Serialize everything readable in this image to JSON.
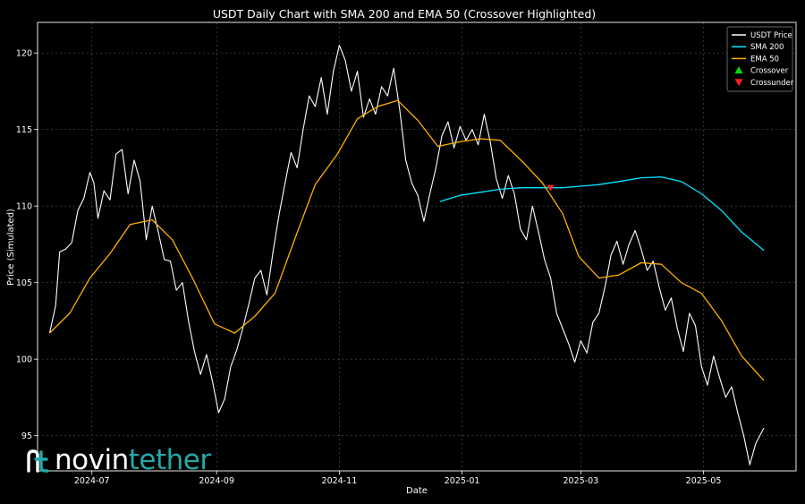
{
  "chart_data": {
    "type": "line",
    "title": "USDT Daily Chart with SMA 200 and EMA 50 (Crossover Highlighted)",
    "xlabel": "Date",
    "ylabel": "Price (Simulated)",
    "x_range": [
      "2024-06-04",
      "2025-06-16"
    ],
    "ylim": [
      92.7,
      122.0
    ],
    "x_ticks": [
      {
        "date": "2024-07-01",
        "label": "2024-07"
      },
      {
        "date": "2024-09-01",
        "label": "2024-09"
      },
      {
        "date": "2024-11-01",
        "label": "2024-11"
      },
      {
        "date": "2025-01-01",
        "label": "2025-01"
      },
      {
        "date": "2025-03-01",
        "label": "2025-03"
      },
      {
        "date": "2025-05-01",
        "label": "2025-05"
      }
    ],
    "y_ticks": [
      95,
      100,
      105,
      110,
      115,
      120
    ],
    "grid": true,
    "legend": "top-right",
    "series": [
      {
        "name": "USDT Price",
        "color": "#ffffff",
        "points": [
          [
            "2024-06-10",
            101.7
          ],
          [
            "2024-06-13",
            103.5
          ],
          [
            "2024-06-15",
            107.0
          ],
          [
            "2024-06-18",
            107.2
          ],
          [
            "2024-06-21",
            107.6
          ],
          [
            "2024-06-24",
            109.7
          ],
          [
            "2024-06-27",
            110.5
          ],
          [
            "2024-06-30",
            112.2
          ],
          [
            "2024-07-02",
            111.5
          ],
          [
            "2024-07-04",
            109.2
          ],
          [
            "2024-07-07",
            111.0
          ],
          [
            "2024-07-10",
            110.4
          ],
          [
            "2024-07-13",
            113.4
          ],
          [
            "2024-07-16",
            113.7
          ],
          [
            "2024-07-19",
            110.8
          ],
          [
            "2024-07-22",
            113.0
          ],
          [
            "2024-07-25",
            111.6
          ],
          [
            "2024-07-28",
            107.8
          ],
          [
            "2024-07-31",
            110.0
          ],
          [
            "2024-08-03",
            108.3
          ],
          [
            "2024-08-06",
            106.5
          ],
          [
            "2024-08-09",
            106.4
          ],
          [
            "2024-08-12",
            104.5
          ],
          [
            "2024-08-15",
            105.0
          ],
          [
            "2024-08-18",
            102.5
          ],
          [
            "2024-08-21",
            100.5
          ],
          [
            "2024-08-24",
            99.0
          ],
          [
            "2024-08-27",
            100.3
          ],
          [
            "2024-08-30",
            98.5
          ],
          [
            "2024-09-02",
            96.5
          ],
          [
            "2024-09-05",
            97.4
          ],
          [
            "2024-09-08",
            99.5
          ],
          [
            "2024-09-11",
            100.6
          ],
          [
            "2024-09-14",
            102.0
          ],
          [
            "2024-09-17",
            103.6
          ],
          [
            "2024-09-20",
            105.3
          ],
          [
            "2024-09-23",
            105.8
          ],
          [
            "2024-09-26",
            104.2
          ],
          [
            "2024-09-29",
            107.0
          ],
          [
            "2024-10-02",
            109.4
          ],
          [
            "2024-10-05",
            111.5
          ],
          [
            "2024-10-08",
            113.5
          ],
          [
            "2024-10-11",
            112.5
          ],
          [
            "2024-10-14",
            115.0
          ],
          [
            "2024-10-17",
            117.2
          ],
          [
            "2024-10-20",
            116.5
          ],
          [
            "2024-10-23",
            118.4
          ],
          [
            "2024-10-26",
            116.0
          ],
          [
            "2024-10-29",
            118.8
          ],
          [
            "2024-11-01",
            120.5
          ],
          [
            "2024-11-04",
            119.5
          ],
          [
            "2024-11-07",
            117.5
          ],
          [
            "2024-11-10",
            118.8
          ],
          [
            "2024-11-13",
            115.8
          ],
          [
            "2024-11-16",
            117.0
          ],
          [
            "2024-11-19",
            116.0
          ],
          [
            "2024-11-22",
            117.8
          ],
          [
            "2024-11-25",
            117.2
          ],
          [
            "2024-11-28",
            119.0
          ],
          [
            "2024-12-01",
            116.3
          ],
          [
            "2024-12-04",
            113.0
          ],
          [
            "2024-12-07",
            111.5
          ],
          [
            "2024-12-10",
            110.7
          ],
          [
            "2024-12-13",
            109.0
          ],
          [
            "2024-12-16",
            110.8
          ],
          [
            "2024-12-19",
            112.5
          ],
          [
            "2024-12-22",
            114.6
          ],
          [
            "2024-12-25",
            115.5
          ],
          [
            "2024-12-28",
            113.8
          ],
          [
            "2024-12-31",
            115.2
          ],
          [
            "2025-01-03",
            114.3
          ],
          [
            "2025-01-06",
            115.0
          ],
          [
            "2025-01-09",
            114.0
          ],
          [
            "2025-01-12",
            116.0
          ],
          [
            "2025-01-15",
            114.2
          ],
          [
            "2025-01-18",
            111.8
          ],
          [
            "2025-01-21",
            110.5
          ],
          [
            "2025-01-24",
            112.0
          ],
          [
            "2025-01-27",
            110.8
          ],
          [
            "2025-01-30",
            108.5
          ],
          [
            "2025-02-02",
            107.8
          ],
          [
            "2025-02-05",
            110.0
          ],
          [
            "2025-02-08",
            108.3
          ],
          [
            "2025-02-11",
            106.5
          ],
          [
            "2025-02-14",
            105.3
          ],
          [
            "2025-02-17",
            103.0
          ],
          [
            "2025-02-20",
            102.0
          ],
          [
            "2025-02-23",
            101.0
          ],
          [
            "2025-02-26",
            99.8
          ],
          [
            "2025-03-01",
            101.2
          ],
          [
            "2025-03-04",
            100.4
          ],
          [
            "2025-03-07",
            102.4
          ],
          [
            "2025-03-10",
            103.0
          ],
          [
            "2025-03-13",
            104.7
          ],
          [
            "2025-03-16",
            106.8
          ],
          [
            "2025-03-19",
            107.7
          ],
          [
            "2025-03-22",
            106.2
          ],
          [
            "2025-03-25",
            107.5
          ],
          [
            "2025-03-28",
            108.4
          ],
          [
            "2025-03-31",
            107.2
          ],
          [
            "2025-04-03",
            105.8
          ],
          [
            "2025-04-06",
            106.4
          ],
          [
            "2025-04-09",
            104.7
          ],
          [
            "2025-04-12",
            103.2
          ],
          [
            "2025-04-15",
            104.0
          ],
          [
            "2025-04-18",
            102.0
          ],
          [
            "2025-04-21",
            100.5
          ],
          [
            "2025-04-24",
            103.0
          ],
          [
            "2025-04-27",
            102.2
          ],
          [
            "2025-04-30",
            99.5
          ],
          [
            "2025-05-03",
            98.3
          ],
          [
            "2025-05-06",
            100.2
          ],
          [
            "2025-05-09",
            98.8
          ],
          [
            "2025-05-12",
            97.5
          ],
          [
            "2025-05-15",
            98.2
          ],
          [
            "2025-05-18",
            96.5
          ],
          [
            "2025-05-21",
            95.0
          ],
          [
            "2025-05-24",
            93.1
          ],
          [
            "2025-05-27",
            94.5
          ],
          [
            "2025-05-31",
            95.5
          ]
        ]
      },
      {
        "name": "SMA 200",
        "color": "#00e5ff",
        "points": [
          [
            "2024-12-21",
            110.3
          ],
          [
            "2024-12-31",
            110.7
          ],
          [
            "2025-01-10",
            110.9
          ],
          [
            "2025-01-20",
            111.1
          ],
          [
            "2025-01-30",
            111.2
          ],
          [
            "2025-02-10",
            111.2
          ],
          [
            "2025-02-20",
            111.2
          ],
          [
            "2025-03-01",
            111.3
          ],
          [
            "2025-03-10",
            111.4
          ],
          [
            "2025-03-20",
            111.6
          ],
          [
            "2025-03-31",
            111.85
          ],
          [
            "2025-04-10",
            111.9
          ],
          [
            "2025-04-20",
            111.6
          ],
          [
            "2025-04-30",
            110.8
          ],
          [
            "2025-05-10",
            109.7
          ],
          [
            "2025-05-20",
            108.3
          ],
          [
            "2025-05-31",
            107.1
          ]
        ]
      },
      {
        "name": "EMA 50",
        "color": "#ffb000",
        "points": [
          [
            "2024-06-10",
            101.7
          ],
          [
            "2024-06-20",
            103.0
          ],
          [
            "2024-06-30",
            105.3
          ],
          [
            "2024-07-10",
            106.9
          ],
          [
            "2024-07-20",
            108.8
          ],
          [
            "2024-07-31",
            109.1
          ],
          [
            "2024-08-10",
            107.8
          ],
          [
            "2024-08-20",
            105.3
          ],
          [
            "2024-08-31",
            102.3
          ],
          [
            "2024-09-10",
            101.7
          ],
          [
            "2024-09-20",
            102.8
          ],
          [
            "2024-09-30",
            104.3
          ],
          [
            "2024-10-10",
            107.9
          ],
          [
            "2024-10-20",
            111.4
          ],
          [
            "2024-10-31",
            113.4
          ],
          [
            "2024-11-10",
            115.7
          ],
          [
            "2024-11-20",
            116.5
          ],
          [
            "2024-11-30",
            116.9
          ],
          [
            "2024-12-10",
            115.6
          ],
          [
            "2024-12-20",
            113.9
          ],
          [
            "2024-12-31",
            114.2
          ],
          [
            "2025-01-10",
            114.4
          ],
          [
            "2025-01-20",
            114.3
          ],
          [
            "2025-01-31",
            112.9
          ],
          [
            "2025-02-10",
            111.5
          ],
          [
            "2025-02-20",
            109.5
          ],
          [
            "2025-02-28",
            106.7
          ],
          [
            "2025-03-10",
            105.3
          ],
          [
            "2025-03-20",
            105.5
          ],
          [
            "2025-03-31",
            106.3
          ],
          [
            "2025-04-10",
            106.2
          ],
          [
            "2025-04-20",
            105.0
          ],
          [
            "2025-04-30",
            104.3
          ],
          [
            "2025-05-10",
            102.5
          ],
          [
            "2025-05-20",
            100.2
          ],
          [
            "2025-05-31",
            98.6
          ]
        ]
      }
    ],
    "markers": [
      {
        "name": "Crossover",
        "color": "#00e000",
        "shape": "triangle-up",
        "points": []
      },
      {
        "name": "Crossunder",
        "color": "#ff2020",
        "shape": "triangle-down",
        "points": [
          [
            "2025-02-14",
            111.2
          ]
        ]
      }
    ]
  },
  "watermark": {
    "part1": "novin",
    "part2": "tether",
    "part1_color": "#ffffff",
    "part2_color": "#25a8a8"
  }
}
